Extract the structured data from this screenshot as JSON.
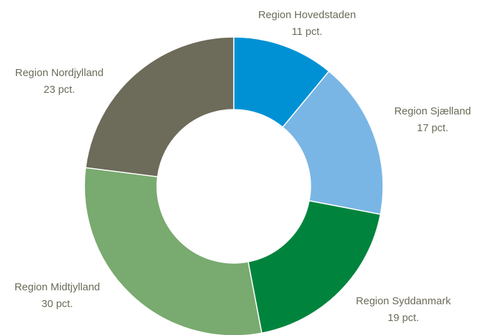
{
  "chart_data": {
    "type": "donut",
    "categories": [
      "Region Hovedstaden",
      "Region Sjælland",
      "Region Syddanmark",
      "Region Midtjylland",
      "Region Nordjylland"
    ],
    "values": [
      11,
      17,
      19,
      30,
      23
    ],
    "value_labels": [
      "11 pct.",
      "17 pct.",
      "19 pct.",
      "30 pct.",
      "23 pct."
    ],
    "colors": [
      "#0091d5",
      "#79b6e5",
      "#00843d",
      "#79aa6f",
      "#6d6b59"
    ]
  }
}
